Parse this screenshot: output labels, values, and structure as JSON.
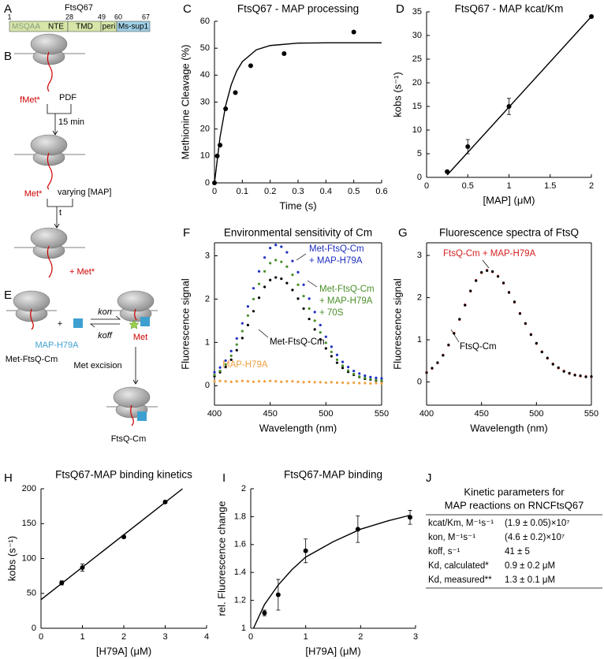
{
  "panel_labels": [
    "A",
    "B",
    "C",
    "D",
    "E",
    "F",
    "G",
    "H",
    "I",
    "J"
  ],
  "domain_map": {
    "title": "FtsQ67",
    "positions": [
      1,
      28,
      49,
      60,
      67
    ],
    "segments": [
      "MSQAA",
      "NTE",
      "TMD",
      "peri",
      "Ms-sup1"
    ]
  },
  "scheme_b": {
    "labels": [
      "fMet*",
      "PDF",
      "15 min",
      "Met*",
      "varying [MAP]",
      "t",
      "+ Met*"
    ]
  },
  "scheme_e": {
    "labels": [
      "+",
      "MAP-H79A",
      "kon",
      "koff",
      "Met-FtsQ-Cm",
      "Met",
      "Met excision",
      "FtsQ-Cm"
    ]
  },
  "table": {
    "title": [
      "Kinetic parameters for",
      "MAP reactions on RNCFtsQ67"
    ],
    "rows": [
      [
        "kcat/Km, M⁻¹s⁻¹",
        "(1.9 ± 0.05)×10⁷"
      ],
      [
        "kon, M⁻¹s⁻¹",
        "(4.6 ± 0.2)×10⁷"
      ],
      [
        "koff, s⁻¹",
        "41 ± 5"
      ],
      [
        "Kd, calculated*",
        "0.9 ± 0.2 μM"
      ],
      [
        "Kd, measured**",
        "1.3 ± 0.1 μM"
      ]
    ]
  },
  "chart_data": [
    {
      "type": "scatter",
      "title": "FtsQ67 - MAP processing",
      "xlabel": "Time (s)",
      "ylabel": "Methionine Cleavage (%)",
      "xlim": [
        0,
        0.6
      ],
      "xticks": [
        0,
        0.1,
        0.2,
        0.3,
        0.4,
        0.5,
        0.6
      ],
      "ylim": [
        0,
        60
      ],
      "yticks": [
        0,
        10,
        20,
        30,
        40,
        50,
        60
      ],
      "series": [
        {
          "mode": "markers",
          "color": "#000000",
          "x": [
            0,
            0.01,
            0.02,
            0.04,
            0.075,
            0.13,
            0.25,
            0.5
          ],
          "values": [
            0,
            10,
            14,
            27.5,
            33.5,
            43.5,
            48,
            56
          ]
        },
        {
          "mode": "line",
          "color": "#000000",
          "x": [
            0,
            0.02,
            0.04,
            0.06,
            0.08,
            0.1,
            0.15,
            0.2,
            0.3,
            0.4,
            0.5,
            0.6
          ],
          "values": [
            0,
            17,
            28.6,
            36.4,
            41.6,
            45,
            49.4,
            51,
            51.9,
            52,
            52,
            52
          ]
        }
      ]
    },
    {
      "type": "scatter",
      "title": "FtsQ67 - MAP kcat/Km",
      "xlabel": "[MAP] (μM)",
      "ylabel": "kobs (s⁻¹)",
      "xlim": [
        0,
        2
      ],
      "xticks": [
        0,
        0.5,
        1,
        1.5,
        2
      ],
      "ylim": [
        0,
        35
      ],
      "yticks": [
        0,
        5,
        10,
        15,
        20,
        25,
        30,
        35
      ],
      "series": [
        {
          "mode": "markers",
          "color": "#000000",
          "x": [
            0.25,
            0.5,
            1,
            2
          ],
          "values": [
            1.2,
            6.5,
            15,
            34
          ],
          "errors": [
            0.3,
            1.5,
            1.7,
            0.3
          ]
        },
        {
          "mode": "line",
          "color": "#000000",
          "x": [
            0.25,
            2
          ],
          "values": [
            0.5,
            34
          ]
        }
      ]
    },
    {
      "type": "scatter",
      "title": "Environmental sensitivity of Cm",
      "xlabel": "Wavelength (nm)",
      "ylabel": "Fluorescence signal",
      "box": true,
      "xlim": [
        400,
        550
      ],
      "xticks": [
        400,
        450,
        500,
        550
      ],
      "ylim": [
        -0.45,
        3.3
      ],
      "yticks": [
        0,
        1,
        2,
        3
      ],
      "x": [
        400,
        405,
        410,
        415,
        420,
        425,
        430,
        435,
        440,
        445,
        450,
        455,
        460,
        465,
        470,
        475,
        480,
        485,
        490,
        495,
        500,
        505,
        510,
        515,
        520,
        525,
        530,
        535,
        540,
        545,
        550
      ],
      "series": [
        {
          "mode": "dots",
          "color": "#f0a040",
          "label": [
            "MAP-H79A"
          ],
          "values": [
            0.1,
            0.11,
            0.1,
            0.09,
            0.1,
            0.11,
            0.1,
            0.09,
            0.1,
            0.1,
            0.11,
            0.1,
            0.09,
            0.1,
            0.1,
            0.09,
            0.08,
            0.09,
            0.08,
            0.08,
            0.07,
            0.08,
            0.07,
            0.07,
            0.06,
            0.07,
            0.06,
            0.06,
            0.05,
            0.06,
            0.05
          ]
        },
        {
          "mode": "dots",
          "color": "#000000",
          "label": [
            "Met-FtsQ-Cm"
          ],
          "values": [
            0.22,
            0.31,
            0.43,
            0.6,
            0.82,
            1.1,
            1.4,
            1.72,
            2.03,
            2.28,
            2.44,
            2.5,
            2.47,
            2.37,
            2.21,
            2.01,
            1.78,
            1.54,
            1.3,
            1.07,
            0.86,
            0.68,
            0.53,
            0.41,
            0.32,
            0.25,
            0.2,
            0.16,
            0.14,
            0.12,
            0.11
          ]
        },
        {
          "mode": "dots",
          "color": "#4a8f2a",
          "label": [
            "Met-FtsQ-Cm",
            "+ MAP-H79A",
            "+ 70S"
          ],
          "values": [
            0.25,
            0.34,
            0.49,
            0.69,
            0.95,
            1.26,
            1.62,
            2.0,
            2.35,
            2.64,
            2.83,
            2.9,
            2.86,
            2.75,
            2.56,
            2.33,
            2.07,
            1.78,
            1.5,
            1.23,
            0.99,
            0.78,
            0.6,
            0.46,
            0.35,
            0.27,
            0.21,
            0.18,
            0.15,
            0.13,
            0.12
          ]
        },
        {
          "mode": "dots",
          "color": "#1f2fbf",
          "label": [
            "Met-FtsQ-Cm",
            "+ MAP-H79A"
          ],
          "values": [
            0.31,
            0.42,
            0.58,
            0.8,
            1.09,
            1.44,
            1.83,
            2.25,
            2.64,
            2.96,
            3.18,
            3.25,
            3.21,
            3.08,
            2.88,
            2.62,
            2.33,
            2.01,
            1.7,
            1.4,
            1.13,
            0.9,
            0.71,
            0.55,
            0.43,
            0.34,
            0.28,
            0.23,
            0.2,
            0.18,
            0.17
          ]
        }
      ]
    },
    {
      "type": "scatter",
      "title": "Fluorescence spectra of FtsQ",
      "xlabel": "Wavelength (nm)",
      "ylabel": "Fluorescence signal",
      "box": true,
      "xlim": [
        400,
        550
      ],
      "xticks": [
        400,
        450,
        500,
        550
      ],
      "ylim": [
        -0.55,
        3.3
      ],
      "yticks": [
        0,
        1,
        2,
        3
      ],
      "x": [
        400,
        405,
        410,
        415,
        420,
        425,
        430,
        435,
        440,
        445,
        450,
        455,
        460,
        465,
        470,
        475,
        480,
        485,
        490,
        495,
        500,
        505,
        510,
        515,
        520,
        525,
        530,
        535,
        540,
        545,
        550
      ],
      "series": [
        {
          "mode": "dots",
          "color": "#d62020",
          "label": [
            "FtsQ-Cm + MAP-H79A"
          ],
          "values": [
            0.23,
            0.32,
            0.45,
            0.64,
            0.87,
            1.16,
            1.48,
            1.83,
            2.15,
            2.41,
            2.59,
            2.65,
            2.61,
            2.51,
            2.34,
            2.13,
            1.89,
            1.63,
            1.38,
            1.13,
            0.91,
            0.72,
            0.56,
            0.43,
            0.33,
            0.26,
            0.2,
            0.17,
            0.14,
            0.13,
            0.12
          ]
        },
        {
          "mode": "dots",
          "color": "#000000",
          "label": [
            "FtsQ-Cm"
          ],
          "values": [
            0.22,
            0.33,
            0.46,
            0.63,
            0.88,
            1.15,
            1.49,
            1.82,
            2.16,
            2.4,
            2.6,
            2.64,
            2.62,
            2.5,
            2.35,
            2.12,
            1.9,
            1.62,
            1.39,
            1.12,
            0.92,
            0.71,
            0.57,
            0.42,
            0.34,
            0.25,
            0.21,
            0.16,
            0.15,
            0.12,
            0.13
          ]
        }
      ]
    },
    {
      "type": "scatter",
      "title": "FtsQ67-MAP binding kinetics",
      "xlabel": "[H79A] (μM)",
      "ylabel": "kobs (s⁻¹)",
      "xlim": [
        0,
        4
      ],
      "xticks": [
        0,
        1,
        2,
        3,
        4
      ],
      "ylim": [
        0,
        200
      ],
      "yticks": [
        0,
        50,
        100,
        150,
        200
      ],
      "series": [
        {
          "mode": "markers",
          "color": "#000000",
          "x": [
            0.5,
            1,
            2,
            3
          ],
          "values": [
            65,
            87,
            131,
            181
          ],
          "errors": [
            3,
            5,
            2,
            2
          ]
        },
        {
          "mode": "line",
          "color": "#000000",
          "x": [
            0,
            3.42
          ],
          "values": [
            41,
            200
          ]
        }
      ]
    },
    {
      "type": "scatter",
      "title": "FtsQ67-MAP binding",
      "xlabel": "[H79A] (μM)",
      "ylabel": "rel. Fluorescence change",
      "xlim": [
        0,
        3
      ],
      "xticks": [
        0,
        1,
        2,
        3
      ],
      "ylim": [
        1,
        2
      ],
      "yticks": [
        1,
        1.2,
        1.4,
        1.6,
        1.8,
        2
      ],
      "series": [
        {
          "mode": "markers",
          "color": "#000000",
          "x": [
            0.25,
            0.5,
            1,
            1.95,
            2.9
          ],
          "values": [
            1.11,
            1.24,
            1.555,
            1.71,
            1.795
          ],
          "errors": [
            0.02,
            0.11,
            0.085,
            0.095,
            0.05
          ]
        },
        {
          "mode": "line",
          "color": "#000000",
          "x": [
            0.05,
            0.25,
            0.5,
            0.75,
            1,
            1.5,
            2,
            2.5,
            2.9
          ],
          "values": [
            1.0,
            1.17,
            1.31,
            1.42,
            1.51,
            1.62,
            1.71,
            1.77,
            1.81
          ]
        }
      ]
    }
  ]
}
